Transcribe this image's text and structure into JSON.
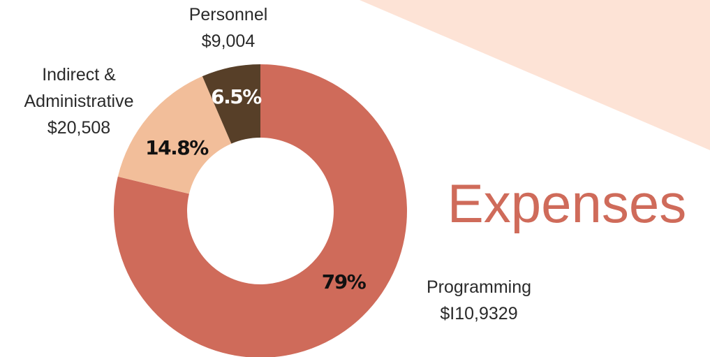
{
  "chart_data": {
    "type": "pie",
    "donut": true,
    "title": "Expenses",
    "categories": [
      "Programming",
      "Indirect & Administrative",
      "Personnel"
    ],
    "values": [
      79,
      14.8,
      6.5
    ],
    "value_labels": [
      "79%",
      "14.8%",
      "6.5%"
    ],
    "amounts": [
      "$I10,9329",
      "$20,508",
      "$9,004"
    ],
    "colors": [
      "#cf6b5a",
      "#f2be9a",
      "#573f28"
    ],
    "label_colors": [
      "#111111",
      "#111111",
      "#ffffff"
    ]
  }
}
